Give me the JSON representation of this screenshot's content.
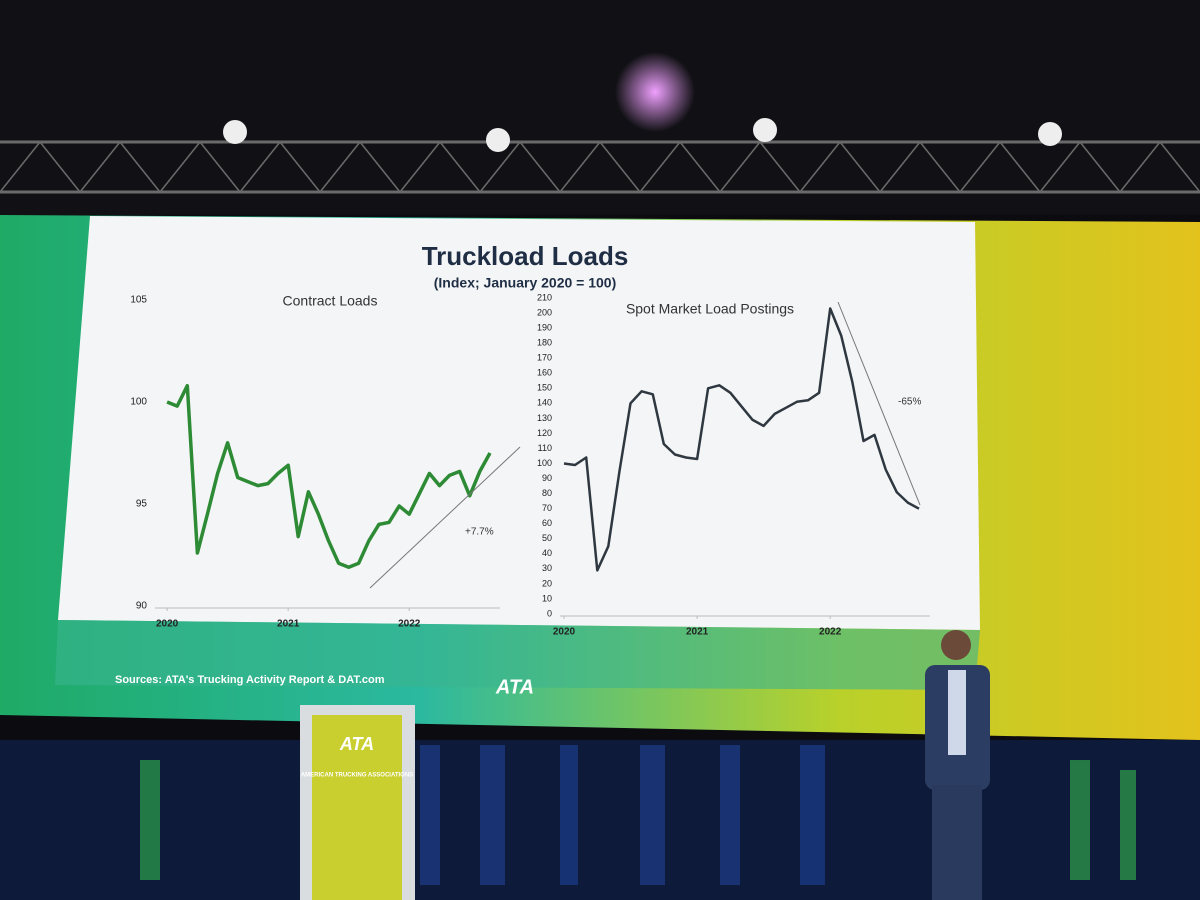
{
  "slide": {
    "title": "Truckload Loads",
    "subtitle": "(Index; January 2020 = 100)",
    "source": "Sources: ATA's Trucking Activity Report & DAT.com",
    "logo": "ATA"
  },
  "podium": {
    "logo": "ATA",
    "text": "AMERICAN TRUCKING ASSOCIATIONS"
  },
  "chart_data": [
    {
      "type": "line",
      "title": "Contract Loads",
      "color": "#2e8b35",
      "x": [
        2020,
        2020.083,
        2020.167,
        2020.25,
        2020.333,
        2020.417,
        2020.5,
        2020.583,
        2020.667,
        2020.75,
        2020.833,
        2020.917,
        2021,
        2021.083,
        2021.167,
        2021.25,
        2021.333,
        2021.417,
        2021.5,
        2021.583,
        2021.667,
        2021.75,
        2021.833,
        2021.917,
        2022,
        2022.083,
        2022.167,
        2022.25,
        2022.333,
        2022.417,
        2022.5,
        2022.583,
        2022.667
      ],
      "values": [
        100.0,
        99.8,
        100.8,
        92.6,
        94.5,
        96.5,
        98.0,
        96.3,
        96.1,
        95.9,
        96.0,
        96.5,
        96.9,
        93.4,
        95.6,
        94.5,
        93.2,
        92.1,
        91.9,
        92.1,
        93.2,
        94.0,
        94.1,
        94.9,
        94.5,
        95.5,
        96.5,
        95.9,
        96.4,
        96.6,
        95.4,
        96.6,
        97.5
      ],
      "xlim": [
        2019.9,
        2022.75
      ],
      "xticks": [
        2020,
        2021,
        2022
      ],
      "ylim": [
        90,
        105
      ],
      "yticks": [
        90,
        95,
        100,
        105
      ],
      "annotation": "+7.7%"
    },
    {
      "type": "line",
      "title": "Spot Market Load Postings",
      "color": "#2f3840",
      "x": [
        2020,
        2020.083,
        2020.167,
        2020.25,
        2020.333,
        2020.417,
        2020.5,
        2020.583,
        2020.667,
        2020.75,
        2020.833,
        2020.917,
        2021,
        2021.083,
        2021.167,
        2021.25,
        2021.333,
        2021.417,
        2021.5,
        2021.583,
        2021.667,
        2021.75,
        2021.833,
        2021.917,
        2022,
        2022.083,
        2022.167,
        2022.25,
        2022.333,
        2022.417,
        2022.5,
        2022.583,
        2022.667
      ],
      "values": [
        100,
        99,
        104,
        29,
        45,
        95,
        140,
        148,
        146,
        113,
        106,
        104,
        103,
        150,
        152,
        147,
        138,
        129,
        125,
        133,
        137,
        141,
        142,
        147,
        203,
        185,
        154,
        115,
        119,
        96,
        81,
        74,
        70
      ],
      "xlim": [
        2019.97,
        2022.75
      ],
      "xticks": [
        2020,
        2021,
        2022
      ],
      "ylim": [
        0,
        210
      ],
      "yticks": [
        0,
        10,
        20,
        30,
        40,
        50,
        60,
        70,
        80,
        90,
        100,
        110,
        120,
        130,
        140,
        150,
        160,
        170,
        180,
        190,
        200,
        210
      ],
      "annotation": "-65%"
    }
  ]
}
